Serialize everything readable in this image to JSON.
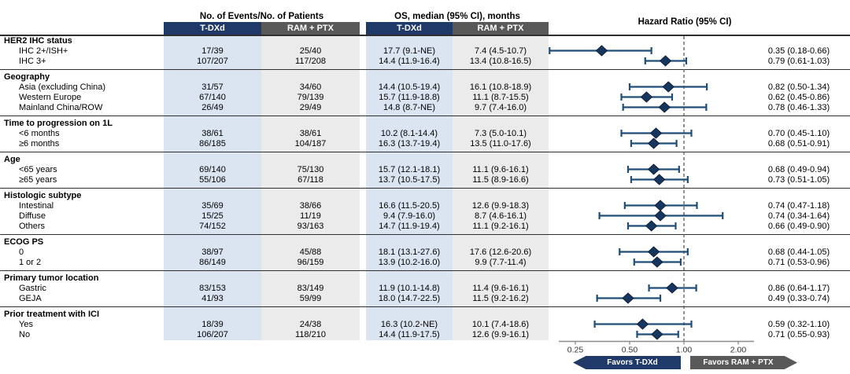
{
  "header": {
    "events_title": "No. of Events/No. of Patients",
    "os_title": "OS, median (95% CI), months",
    "hr_title": "Hazard Ratio (95% CI)",
    "col_tdxd": "T-DXd",
    "col_ram": "RAM + PTX"
  },
  "footer": {
    "favors_left": "Favors T-DXd",
    "favors_right": "Favors RAM + PTX"
  },
  "colors": {
    "navy": "#1f3a68",
    "dark_gray": "#595959",
    "light_blue": "#dbe4f1",
    "light_gray": "#ebebeb",
    "diamond": "#17365d",
    "ci_line": "#1f4e79",
    "ref_line": "#5a5a5a",
    "axis_line": "#8c8c8c"
  },
  "chart_data": {
    "type": "forest",
    "x_scale": "log",
    "x_ticks": [
      0.25,
      0.5,
      1.0,
      2.0
    ],
    "x_tick_labels": [
      "0.25",
      "0.50",
      "1.00",
      "2.00"
    ],
    "reference_line": 1.0,
    "columns": [
      "Events T-DXd",
      "Events RAM + PTX",
      "OS T-DXd",
      "OS RAM + PTX",
      "Hazard Ratio (95% CI)"
    ],
    "sections": [
      {
        "label": "HER2 IHC status",
        "rows": [
          {
            "label": "IHC 2+/ISH+",
            "events_tdxd": "17/39",
            "events_ram": "25/40",
            "os_tdxd": "17.7 (9.1-NE)",
            "os_ram": "7.4 (4.5-10.7)",
            "hr_text": "0.35 (0.18-0.66)",
            "hr": 0.35,
            "lo": 0.18,
            "hi": 0.66
          },
          {
            "label": "IHC 3+",
            "events_tdxd": "107/207",
            "events_ram": "117/208",
            "os_tdxd": "14.4 (11.9-16.4)",
            "os_ram": "13.4 (10.8-16.5)",
            "hr_text": "0.79 (0.61-1.03)",
            "hr": 0.79,
            "lo": 0.61,
            "hi": 1.03
          }
        ]
      },
      {
        "label": "Geography",
        "rows": [
          {
            "label": "Asia (excluding China)",
            "events_tdxd": "31/57",
            "events_ram": "34/60",
            "os_tdxd": "14.4 (10.5-19.4)",
            "os_ram": "16.1 (10.8-18.9)",
            "hr_text": "0.82 (0.50-1.34)",
            "hr": 0.82,
            "lo": 0.5,
            "hi": 1.34
          },
          {
            "label": "Western Europe",
            "events_tdxd": "67/140",
            "events_ram": "79/139",
            "os_tdxd": "15.7 (11.9-18.8)",
            "os_ram": "11.1 (8.7-15.5)",
            "hr_text": "0.62 (0.45-0.86)",
            "hr": 0.62,
            "lo": 0.45,
            "hi": 0.86
          },
          {
            "label": "Mainland China/ROW",
            "events_tdxd": "26/49",
            "events_ram": "29/49",
            "os_tdxd": "14.8 (8.7-NE)",
            "os_ram": "9.7 (7.4-16.0)",
            "hr_text": "0.78 (0.46-1.33)",
            "hr": 0.78,
            "lo": 0.46,
            "hi": 1.33
          }
        ]
      },
      {
        "label": "Time to progression on 1L",
        "rows": [
          {
            "label": "<6 months",
            "events_tdxd": "38/61",
            "events_ram": "38/61",
            "os_tdxd": "10.2 (8.1-14.4)",
            "os_ram": "7.3 (5.0-10.1)",
            "hr_text": "0.70 (0.45-1.10)",
            "hr": 0.7,
            "lo": 0.45,
            "hi": 1.1
          },
          {
            "label": "≥6 months",
            "events_tdxd": "86/185",
            "events_ram": "104/187",
            "os_tdxd": "16.3 (13.7-19.4)",
            "os_ram": "13.5 (11.0-17.6)",
            "hr_text": "0.68 (0.51-0.91)",
            "hr": 0.68,
            "lo": 0.51,
            "hi": 0.91
          }
        ]
      },
      {
        "label": "Age",
        "rows": [
          {
            "label": "<65 years",
            "events_tdxd": "69/140",
            "events_ram": "75/130",
            "os_tdxd": "15.7 (12.1-18.1)",
            "os_ram": "11.1 (9.6-16.1)",
            "hr_text": "0.68 (0.49-0.94)",
            "hr": 0.68,
            "lo": 0.49,
            "hi": 0.94
          },
          {
            "label": "≥65 years",
            "events_tdxd": "55/106",
            "events_ram": "67/118",
            "os_tdxd": "13.7 (10.5-17.5)",
            "os_ram": "11.5 (8.9-16.6)",
            "hr_text": "0.73 (0.51-1.05)",
            "hr": 0.73,
            "lo": 0.51,
            "hi": 1.05
          }
        ]
      },
      {
        "label": "Histologic subtype",
        "rows": [
          {
            "label": "Intestinal",
            "events_tdxd": "35/69",
            "events_ram": "38/66",
            "os_tdxd": "16.6 (11.5-20.5)",
            "os_ram": "12.6 (9.9-18.3)",
            "hr_text": "0.74 (0.47-1.18)",
            "hr": 0.74,
            "lo": 0.47,
            "hi": 1.18
          },
          {
            "label": "Diffuse",
            "events_tdxd": "15/25",
            "events_ram": "11/19",
            "os_tdxd": "9.4 (7.9-16.0)",
            "os_ram": "8.7 (4.6-16.1)",
            "hr_text": "0.74 (0.34-1.64)",
            "hr": 0.74,
            "lo": 0.34,
            "hi": 1.64
          },
          {
            "label": "Others",
            "events_tdxd": "74/152",
            "events_ram": "93/163",
            "os_tdxd": "14.7 (11.9-19.4)",
            "os_ram": "11.1 (9.2-16.1)",
            "hr_text": "0.66 (0.49-0.90)",
            "hr": 0.66,
            "lo": 0.49,
            "hi": 0.9
          }
        ]
      },
      {
        "label": "ECOG PS",
        "rows": [
          {
            "label": "0",
            "events_tdxd": "38/97",
            "events_ram": "45/88",
            "os_tdxd": "18.1 (13.1-27.6)",
            "os_ram": "17.6 (12.6-20.6)",
            "hr_text": "0.68 (0.44-1.05)",
            "hr": 0.68,
            "lo": 0.44,
            "hi": 1.05
          },
          {
            "label": "1 or 2",
            "events_tdxd": "86/149",
            "events_ram": "96/159",
            "os_tdxd": "13.9 (10.2-16.0)",
            "os_ram": "9.9 (7.7-11.4)",
            "hr_text": "0.71 (0.53-0.96)",
            "hr": 0.71,
            "lo": 0.53,
            "hi": 0.96
          }
        ]
      },
      {
        "label": "Primary tumor location",
        "rows": [
          {
            "label": "Gastric",
            "events_tdxd": "83/153",
            "events_ram": "83/149",
            "os_tdxd": "11.9 (10.1-14.8)",
            "os_ram": "11.4 (9.6-16.1)",
            "hr_text": "0.86 (0.64-1.17)",
            "hr": 0.86,
            "lo": 0.64,
            "hi": 1.17
          },
          {
            "label": "GEJA",
            "events_tdxd": "41/93",
            "events_ram": "59/99",
            "os_tdxd": "18.0 (14.7-22.5)",
            "os_ram": "11.5 (9.2-16.2)",
            "hr_text": "0.49 (0.33-0.74)",
            "hr": 0.49,
            "lo": 0.33,
            "hi": 0.74
          }
        ]
      },
      {
        "label": "Prior treatment with ICI",
        "rows": [
          {
            "label": "Yes",
            "events_tdxd": "18/39",
            "events_ram": "24/38",
            "os_tdxd": "16.3 (10.2-NE)",
            "os_ram": "10.1 (7.4-18.6)",
            "hr_text": "0.59 (0.32-1.10)",
            "hr": 0.59,
            "lo": 0.32,
            "hi": 1.1
          },
          {
            "label": "No",
            "events_tdxd": "106/207",
            "events_ram": "118/210",
            "os_tdxd": "14.4 (11.9-17.5)",
            "os_ram": "12.6 (9.9-16.1)",
            "hr_text": "0.71 (0.55-0.93)",
            "hr": 0.71,
            "lo": 0.55,
            "hi": 0.93
          }
        ]
      }
    ]
  }
}
